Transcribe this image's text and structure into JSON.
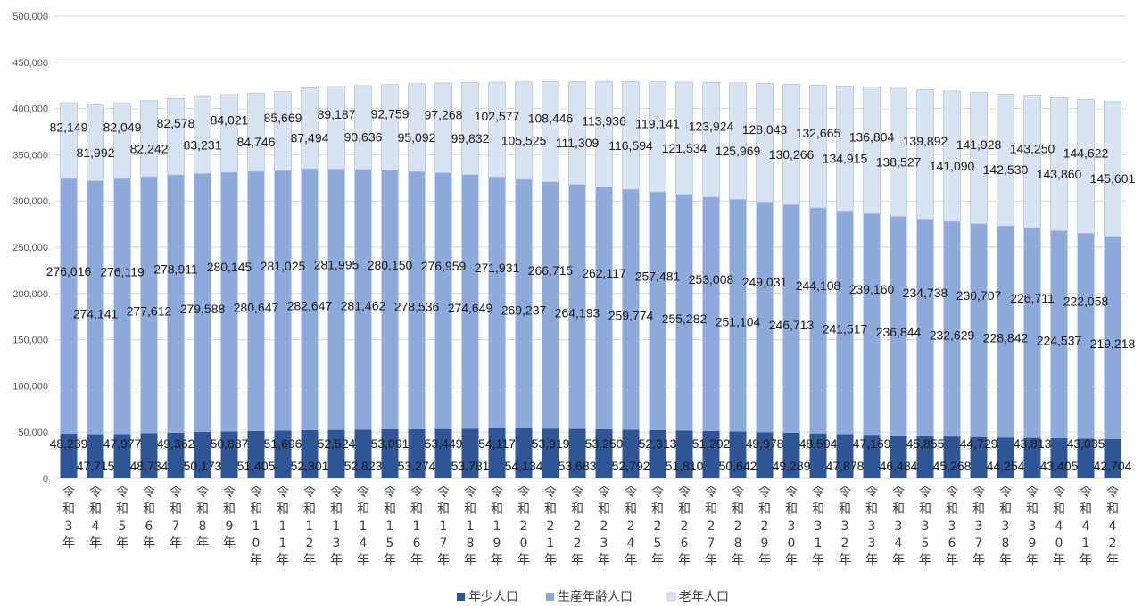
{
  "chart_data": {
    "type": "bar",
    "stacked": true,
    "title": "",
    "xlabel": "",
    "ylabel": "",
    "ylim": [
      0,
      500000
    ],
    "yticks": [
      0,
      50000,
      100000,
      150000,
      200000,
      250000,
      300000,
      350000,
      400000,
      450000,
      500000
    ],
    "ytick_labels": [
      "0",
      "50,000",
      "100,000",
      "150,000",
      "200,000",
      "250,000",
      "300,000",
      "350,000",
      "400,000",
      "450,000",
      "500,000"
    ],
    "grid": true,
    "legend_position": "bottom",
    "categories": [
      "令和3年",
      "令和4年",
      "令和5年",
      "令和6年",
      "令和7年",
      "令和8年",
      "令和9年",
      "令和10年",
      "令和11年",
      "令和12年",
      "令和13年",
      "令和14年",
      "令和15年",
      "令和16年",
      "令和17年",
      "令和18年",
      "令和19年",
      "令和20年",
      "令和21年",
      "令和22年",
      "令和23年",
      "令和24年",
      "令和25年",
      "令和26年",
      "令和27年",
      "令和28年",
      "令和29年",
      "令和30年",
      "令和31年",
      "令和32年",
      "令和33年",
      "令和34年",
      "令和35年",
      "令和36年",
      "令和37年",
      "令和38年",
      "令和39年",
      "令和40年",
      "令和41年",
      "令和42年"
    ],
    "series": [
      {
        "name": "年少人口",
        "color": "#2f5597",
        "values": [
          48239,
          47715,
          47977,
          48734,
          49362,
          50173,
          50887,
          51405,
          51696,
          52301,
          52524,
          52823,
          53091,
          53274,
          53449,
          53781,
          54117,
          54134,
          53919,
          53683,
          53250,
          52792,
          52313,
          51810,
          51292,
          50642,
          49978,
          49289,
          48594,
          47878,
          47169,
          46484,
          45855,
          45268,
          44729,
          44254,
          43813,
          43405,
          43035,
          42704
        ],
        "value_labels": [
          "48,239",
          "47,715",
          "47,977",
          "48,734",
          "49,362",
          "50,173",
          "50,887",
          "51,405",
          "51,696",
          "52,301",
          "52,524",
          "52,823",
          "53,091",
          "53,274",
          "53,449",
          "53,781",
          "54,117",
          "54,134",
          "53,919",
          "53,683",
          "53,250",
          "52,792",
          "52,313",
          "51,810",
          "51,292",
          "50,642",
          "49,978",
          "49,289",
          "48,594",
          "47,878",
          "47,169",
          "46,484",
          "45,855",
          "45,268",
          "44,729",
          "44,254",
          "43,813",
          "43,405",
          "43,035",
          "42,704"
        ]
      },
      {
        "name": "生産年齢人口",
        "color": "#8eaadb",
        "values": [
          276016,
          274141,
          276119,
          277612,
          278911,
          279588,
          280145,
          280647,
          281025,
          282647,
          281995,
          281462,
          280150,
          278536,
          276959,
          274649,
          271931,
          269237,
          266715,
          264193,
          262117,
          259774,
          257481,
          255282,
          253008,
          251104,
          249031,
          246713,
          244108,
          241517,
          239160,
          236844,
          234738,
          232629,
          230707,
          228842,
          226711,
          224537,
          222058,
          219218
        ],
        "value_labels": [
          "276,016",
          "274,141",
          "276,119",
          "277,612",
          "278,911",
          "279,588",
          "280,145",
          "280,647",
          "281,025",
          "282,647",
          "281,995",
          "281,462",
          "280,150",
          "278,536",
          "276,959",
          "274,649",
          "271,931",
          "269,237",
          "266,715",
          "264,193",
          "262,117",
          "259,774",
          "257,481",
          "255,282",
          "253,008",
          "251,104",
          "249,031",
          "246,713",
          "244,108",
          "241,517",
          "239,160",
          "236,844",
          "234,738",
          "232,629",
          "230,707",
          "228,842",
          "226,711",
          "224,537",
          "222,058",
          "219,218"
        ]
      },
      {
        "name": "老年人口",
        "color": "#dae3f3",
        "values": [
          82149,
          81992,
          82049,
          82242,
          82578,
          83231,
          84021,
          84746,
          85669,
          87494,
          89187,
          90636,
          92759,
          95092,
          97268,
          99832,
          102577,
          105525,
          108446,
          111309,
          113936,
          116594,
          119141,
          121534,
          123924,
          125969,
          128043,
          130266,
          132665,
          134915,
          136804,
          138527,
          139892,
          141090,
          141928,
          142530,
          143250,
          143860,
          144622,
          145601
        ],
        "value_labels": [
          "82,149",
          "81,992",
          "82,049",
          "82,242",
          "82,578",
          "83,231",
          "84,021",
          "84,746",
          "85,669",
          "87,494",
          "89,187",
          "90,636",
          "92,759",
          "95,092",
          "97,268",
          "99,832",
          "102,577",
          "105,525",
          "108,446",
          "111,309",
          "113,936",
          "116,594",
          "119,141",
          "121,534",
          "123,924",
          "125,969",
          "128,043",
          "130,266",
          "132,665",
          "134,915",
          "136,804",
          "138,527",
          "139,892",
          "141,090",
          "141,928",
          "142,530",
          "143,250",
          "143,860",
          "144,622",
          "145,601"
        ]
      }
    ]
  }
}
